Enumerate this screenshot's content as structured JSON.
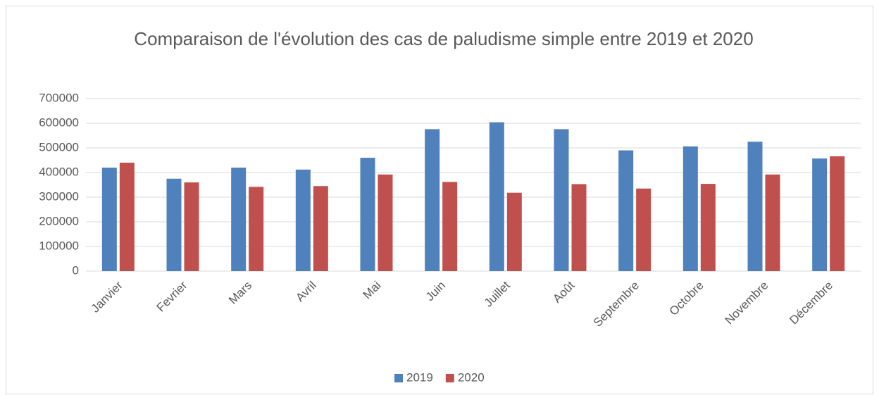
{
  "chart_data": {
    "type": "bar",
    "title": "Comparaison de l'évolution des cas de paludisme simple entre 2019 et 2020",
    "categories": [
      "Janvier",
      "Fevrier",
      "Mars",
      "Avril",
      "Mai",
      "Juin",
      "Juillet",
      "Août",
      "Septembre",
      "Octobre",
      "Novembre",
      "Décembre"
    ],
    "series": [
      {
        "name": "2019",
        "color": "#4f81bd",
        "values": [
          420000,
          375000,
          420000,
          412000,
          460000,
          576000,
          604000,
          576000,
          490000,
          506000,
          525000,
          457000
        ]
      },
      {
        "name": "2020",
        "color": "#c0504d",
        "values": [
          440000,
          360000,
          342000,
          345000,
          392000,
          362000,
          318000,
          353000,
          335000,
          354000,
          392000,
          466000
        ]
      }
    ],
    "ylim": [
      0,
      700000
    ],
    "yticks": [
      0,
      100000,
      200000,
      300000,
      400000,
      500000,
      600000,
      700000
    ],
    "grid": true,
    "legend": "bottom"
  }
}
